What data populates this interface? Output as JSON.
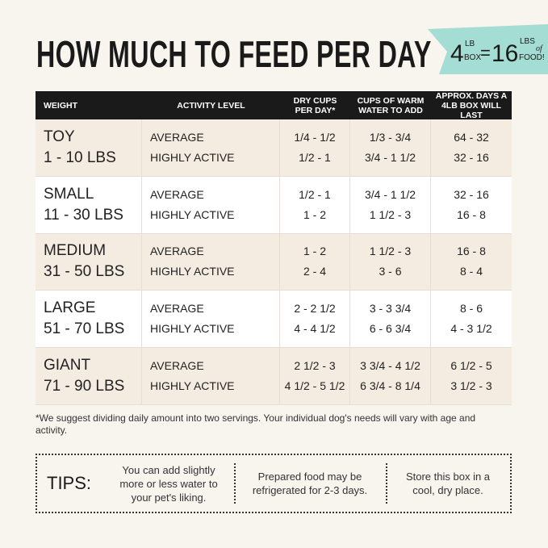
{
  "header": {
    "title": "HOW MUCH TO FEED PER DAY",
    "badge": {
      "box_weight": "4",
      "box_unit_top": "LB",
      "box_unit_bottom": "BOX",
      "equals": "=",
      "food_weight": "16",
      "food_unit_top": "LBS",
      "food_unit_mid": "of",
      "food_unit_bottom": "FOOD!"
    }
  },
  "table": {
    "columns": [
      [
        "WEIGHT"
      ],
      [
        "ACTIVITY LEVEL"
      ],
      [
        "DRY CUPS",
        "PER DAY*"
      ],
      [
        "CUPS OF WARM",
        "WATER TO ADD"
      ],
      [
        "APPROX. DAYS A",
        "4LB BOX WILL LAST"
      ]
    ],
    "rows": [
      {
        "size": "TOY",
        "range": "1 - 10 LBS",
        "levels": [
          "AVERAGE",
          "HIGHLY ACTIVE"
        ],
        "dry": [
          "1/4 - 1/2",
          "1/2 - 1"
        ],
        "water": [
          "1/3 - 3/4",
          "3/4 - 1 1/2"
        ],
        "days": [
          "64 - 32",
          "32 - 16"
        ]
      },
      {
        "size": "SMALL",
        "range": "11 - 30 LBS",
        "levels": [
          "AVERAGE",
          "HIGHLY ACTIVE"
        ],
        "dry": [
          "1/2 - 1",
          "1 - 2"
        ],
        "water": [
          "3/4 - 1 1/2",
          "1 1/2 - 3"
        ],
        "days": [
          "32 - 16",
          "16 - 8"
        ]
      },
      {
        "size": "MEDIUM",
        "range": "31 - 50 LBS",
        "levels": [
          "AVERAGE",
          "HIGHLY ACTIVE"
        ],
        "dry": [
          "1 - 2",
          "2 - 4"
        ],
        "water": [
          "1 1/2 - 3",
          "3 - 6"
        ],
        "days": [
          "16 - 8",
          "8 - 4"
        ]
      },
      {
        "size": "LARGE",
        "range": "51 - 70 LBS",
        "levels": [
          "AVERAGE",
          "HIGHLY ACTIVE"
        ],
        "dry": [
          "2 - 2 1/2",
          "4 - 4 1/2"
        ],
        "water": [
          "3 - 3 3/4",
          "6 - 6 3/4"
        ],
        "days": [
          "8 - 6",
          "4 - 3 1/2"
        ]
      },
      {
        "size": "GIANT",
        "range": "71 - 90 LBS",
        "levels": [
          "AVERAGE",
          "HIGHLY ACTIVE"
        ],
        "dry": [
          "2 1/2 - 3",
          "4 1/2 - 5 1/2"
        ],
        "water": [
          "3 3/4 - 4 1/2",
          "6 3/4 - 8 1/4"
        ],
        "days": [
          "6 1/2 - 5",
          "3 1/2 - 3"
        ]
      }
    ]
  },
  "footnote": "*We suggest dividing daily amount into two servings. Your individual dog's needs will vary with age and activity.",
  "tips": {
    "label": "TIPS:",
    "items": [
      "You can add slightly more or less water to your pet's liking.",
      "Prepared food may be refrigerated for 2-3 days.",
      "Store this box in a cool, dry place."
    ]
  }
}
